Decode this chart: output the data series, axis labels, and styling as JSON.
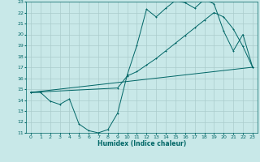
{
  "xlabel": "Humidex (Indice chaleur)",
  "xlim": [
    -0.5,
    23.5
  ],
  "ylim": [
    11,
    23
  ],
  "xticks": [
    0,
    1,
    2,
    3,
    4,
    5,
    6,
    7,
    8,
    9,
    10,
    11,
    12,
    13,
    14,
    15,
    16,
    17,
    18,
    19,
    20,
    21,
    22,
    23
  ],
  "yticks": [
    11,
    12,
    13,
    14,
    15,
    16,
    17,
    18,
    19,
    20,
    21,
    22,
    23
  ],
  "background_color": "#c8e8e8",
  "grid_color": "#aacccc",
  "line_color": "#006666",
  "curve1_x": [
    0,
    1,
    2,
    3,
    4,
    5,
    6,
    7,
    8,
    9,
    10,
    11,
    12,
    13,
    14,
    15,
    16,
    17,
    18,
    19,
    20,
    21,
    22,
    23
  ],
  "curve1_y": [
    14.7,
    14.7,
    13.9,
    13.6,
    14.1,
    11.8,
    11.2,
    11.0,
    11.3,
    12.8,
    16.3,
    19.0,
    22.3,
    21.6,
    22.4,
    23.1,
    22.9,
    22.4,
    23.2,
    22.8,
    20.3,
    18.5,
    20.0,
    17.0
  ],
  "curve2_x": [
    0,
    23
  ],
  "curve2_y": [
    14.7,
    17.0
  ],
  "curve3_x": [
    0,
    9,
    10,
    11,
    12,
    13,
    14,
    15,
    16,
    17,
    18,
    19,
    20,
    21,
    22,
    23
  ],
  "curve3_y": [
    14.7,
    15.1,
    16.2,
    16.6,
    17.2,
    17.8,
    18.5,
    19.2,
    19.9,
    20.6,
    21.3,
    22.0,
    21.6,
    20.5,
    18.9,
    17.0
  ]
}
